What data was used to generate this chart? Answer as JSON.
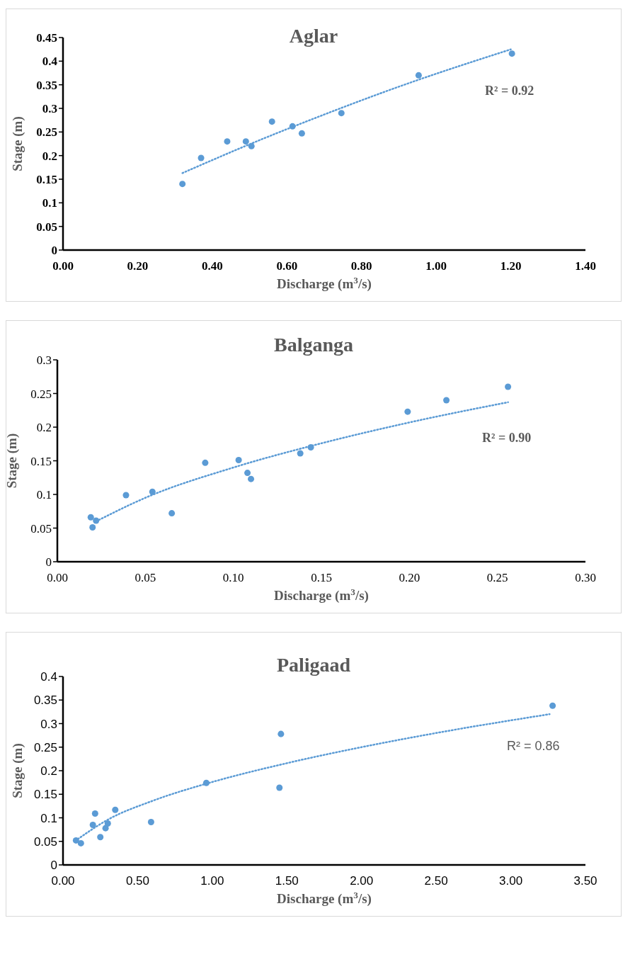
{
  "chart_data": [
    {
      "type": "scatter",
      "title": "Aglar",
      "xlabel": "Discharge (m$^{3}$/s)",
      "ylabel": "Stage (m)",
      "marker": "circle",
      "xlim": [
        0,
        1.4
      ],
      "xticks": [
        {
          "value": 0,
          "label": "0.00"
        },
        {
          "value": 0.2,
          "label": "0.20"
        },
        {
          "value": 0.4,
          "label": "0.40"
        },
        {
          "value": 0.6,
          "label": "0.60"
        },
        {
          "value": 0.8,
          "label": "0.80"
        },
        {
          "value": 1,
          "label": "1.00"
        },
        {
          "value": 1.2,
          "label": "1.20"
        },
        {
          "value": 1.4,
          "label": "1.40"
        }
      ],
      "ylim": [
        0,
        0.45
      ],
      "yticks": [
        0,
        0.05,
        0.1,
        0.15,
        0.2,
        0.25,
        0.3,
        0.35,
        0.4,
        0.45
      ],
      "series": [
        {
          "type": "scatter",
          "color": "#5b9bd5",
          "x": [
            0.32,
            0.37,
            0.44,
            0.49,
            0.505,
            0.56,
            0.615,
            0.64,
            0.746,
            0.953,
            1.203
          ],
          "values": [
            0.14,
            0.195,
            0.23,
            0.23,
            0.22,
            0.272,
            0.262,
            0.247,
            0.29,
            0.37,
            0.416
          ]
        },
        {
          "type": "line",
          "color": "#5b9bd5",
          "line_style": "dotted",
          "marker": "none",
          "x": [
            0.32,
            0.5,
            0.7,
            0.9,
            1.2
          ],
          "values": [
            0.163,
            0.224,
            0.287,
            0.346,
            0.425
          ]
        }
      ],
      "annotations": [
        "R² = 0.92"
      ]
    },
    {
      "type": "scatter",
      "title": "Balganga",
      "xlabel": "Discharge (m$^{3}$/s)",
      "ylabel": "Stage (m)",
      "marker": "circle",
      "xlim": [
        0,
        0.3
      ],
      "xticks": [
        {
          "value": 0,
          "label": "0.00"
        },
        {
          "value": 0.05,
          "label": "0.05"
        },
        {
          "value": 0.1,
          "label": "0.10"
        },
        {
          "value": 0.15,
          "label": "0.15"
        },
        {
          "value": 0.2,
          "label": "0.20"
        },
        {
          "value": 0.25,
          "label": "0.25"
        },
        {
          "value": 0.3,
          "label": "0.30"
        }
      ],
      "ylim": [
        0,
        0.3
      ],
      "yticks": [
        0,
        0.05,
        0.1,
        0.15,
        0.2,
        0.25,
        0.3
      ],
      "series": [
        {
          "type": "scatter",
          "color": "#5b9bd5",
          "x": [
            0.019,
            0.02,
            0.022,
            0.039,
            0.054,
            0.065,
            0.084,
            0.103,
            0.108,
            0.11,
            0.138,
            0.144,
            0.199,
            0.221,
            0.256
          ],
          "values": [
            0.066,
            0.051,
            0.061,
            0.099,
            0.104,
            0.072,
            0.147,
            0.151,
            0.132,
            0.123,
            0.161,
            0.17,
            0.223,
            0.24,
            0.26
          ]
        },
        {
          "type": "line",
          "color": "#5b9bd5",
          "line_style": "dotted",
          "marker": "none",
          "x": [
            0.022,
            0.05,
            0.1,
            0.15,
            0.2,
            0.256
          ],
          "values": [
            0.06,
            0.095,
            0.14,
            0.176,
            0.207,
            0.237
          ]
        }
      ],
      "annotations": [
        "R² = 0.90"
      ]
    },
    {
      "type": "scatter",
      "title": "Paligaad",
      "xlabel": "Discharge (m$^{3}$/s)",
      "ylabel": "Stage (m)",
      "marker": "circle",
      "xlim": [
        0,
        3.5
      ],
      "xticks": [
        {
          "value": 0,
          "label": "0.00"
        },
        {
          "value": 0.5,
          "label": "0.50"
        },
        {
          "value": 1,
          "label": "1.00"
        },
        {
          "value": 1.5,
          "label": "1.50"
        },
        {
          "value": 2,
          "label": "2.00"
        },
        {
          "value": 2.5,
          "label": "2.50"
        },
        {
          "value": 3,
          "label": "3.00"
        },
        {
          "value": 3.5,
          "label": "3.50"
        }
      ],
      "ylim": [
        0,
        0.4
      ],
      "yticks": [
        0,
        0.05,
        0.1,
        0.15,
        0.2,
        0.25,
        0.3,
        0.35,
        0.4
      ],
      "series": [
        {
          "type": "scatter",
          "color": "#5b9bd5",
          "x": [
            0.087,
            0.12,
            0.2,
            0.215,
            0.25,
            0.285,
            0.3,
            0.35,
            0.59,
            0.96,
            1.45,
            1.46,
            3.28
          ],
          "values": [
            0.052,
            0.046,
            0.085,
            0.109,
            0.059,
            0.078,
            0.088,
            0.117,
            0.091,
            0.174,
            0.164,
            0.278,
            0.338
          ]
        },
        {
          "type": "line",
          "color": "#5b9bd5",
          "line_style": "dotted",
          "marker": "none",
          "x": [
            0.1,
            0.3,
            0.6,
            1,
            1.5,
            2,
            2.5,
            3.26
          ],
          "values": [
            0.055,
            0.096,
            0.136,
            0.176,
            0.216,
            0.25,
            0.28,
            0.32
          ]
        }
      ],
      "annotations": [
        "R² = 0.86"
      ]
    }
  ]
}
